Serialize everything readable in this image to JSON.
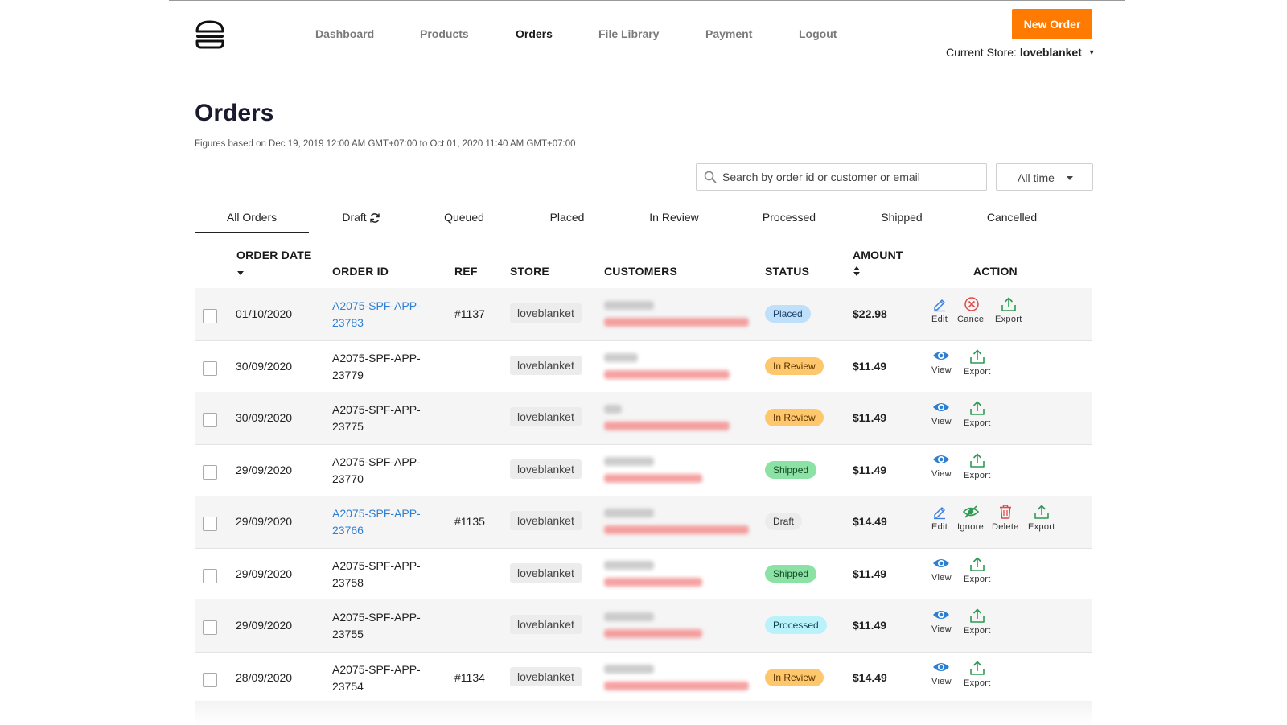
{
  "header": {
    "nav": [
      {
        "label": "Dashboard",
        "active": false
      },
      {
        "label": "Products",
        "active": false
      },
      {
        "label": "Orders",
        "active": true
      },
      {
        "label": "File Library",
        "active": false
      },
      {
        "label": "Payment",
        "active": false
      },
      {
        "label": "Logout",
        "active": false
      }
    ],
    "new_order_label": "New Order",
    "current_store_label": "Current Store:",
    "current_store_value": "loveblanket",
    "accent_color": "#ff7a00"
  },
  "page": {
    "title": "Orders",
    "figures_note": "Figures based on Dec 19, 2019 12:00 AM GMT+07:00 to Oct 01, 2020 11:40 AM GMT+07:00"
  },
  "search": {
    "placeholder": "Search by order id or customer or email",
    "value": ""
  },
  "time_filter": {
    "selected": "All time"
  },
  "tabs": [
    {
      "label": "All Orders",
      "active": true
    },
    {
      "label": "Draft",
      "active": false,
      "icon": "sync-icon"
    },
    {
      "label": "Queued",
      "active": false
    },
    {
      "label": "Placed",
      "active": false
    },
    {
      "label": "In Review",
      "active": false
    },
    {
      "label": "Processed",
      "active": false
    },
    {
      "label": "Shipped",
      "active": false
    },
    {
      "label": "Cancelled",
      "active": false
    }
  ],
  "table": {
    "columns": {
      "order_date": "ORDER DATE",
      "order_id": "ORDER ID",
      "ref": "REF",
      "store": "STORE",
      "customers": "CUSTOMERS",
      "status": "STATUS",
      "amount": "AMOUNT",
      "action": "ACTION"
    },
    "rows": [
      {
        "date": "01/10/2020",
        "id_line1": "A2075-SPF-APP-",
        "id_line2": "23783",
        "id_link": true,
        "ref": "#1137",
        "store": "loveblanket",
        "status": "Placed",
        "amount": "$22.98",
        "actions": [
          "Edit",
          "Cancel",
          "Export"
        ]
      },
      {
        "date": "30/09/2020",
        "id_line1": "A2075-SPF-APP-",
        "id_line2": "23779",
        "id_link": false,
        "ref": "",
        "store": "loveblanket",
        "status": "In Review",
        "amount": "$11.49",
        "actions": [
          "View",
          "Export"
        ]
      },
      {
        "date": "30/09/2020",
        "id_line1": "A2075-SPF-APP-",
        "id_line2": "23775",
        "id_link": false,
        "ref": "",
        "store": "loveblanket",
        "status": "In Review",
        "amount": "$11.49",
        "actions": [
          "View",
          "Export"
        ]
      },
      {
        "date": "29/09/2020",
        "id_line1": "A2075-SPF-APP-",
        "id_line2": "23770",
        "id_link": false,
        "ref": "",
        "store": "loveblanket",
        "status": "Shipped",
        "amount": "$11.49",
        "actions": [
          "View",
          "Export"
        ]
      },
      {
        "date": "29/09/2020",
        "id_line1": "A2075-SPF-APP-",
        "id_line2": "23766",
        "id_link": true,
        "ref": "#1135",
        "store": "loveblanket",
        "status": "Draft",
        "amount": "$14.49",
        "actions": [
          "Edit",
          "Ignore",
          "Delete",
          "Export"
        ]
      },
      {
        "date": "29/09/2020",
        "id_line1": "A2075-SPF-APP-",
        "id_line2": "23758",
        "id_link": false,
        "ref": "",
        "store": "loveblanket",
        "status": "Shipped",
        "amount": "$11.49",
        "actions": [
          "View",
          "Export"
        ]
      },
      {
        "date": "29/09/2020",
        "id_line1": "A2075-SPF-APP-",
        "id_line2": "23755",
        "id_link": false,
        "ref": "",
        "store": "loveblanket",
        "status": "Processed",
        "amount": "$11.49",
        "actions": [
          "View",
          "Export"
        ]
      },
      {
        "date": "28/09/2020",
        "id_line1": "A2075-SPF-APP-",
        "id_line2": "23754",
        "id_link": false,
        "ref": "#1134",
        "store": "loveblanket",
        "status": "In Review",
        "amount": "$14.49",
        "actions": [
          "View",
          "Export"
        ]
      }
    ]
  },
  "status_colors": {
    "Placed": {
      "bg": "#bfe0fb",
      "fg": "#1d3f66"
    },
    "In Review": {
      "bg": "#ffc76b",
      "fg": "#5a3300"
    },
    "Shipped": {
      "bg": "#8be2a4",
      "fg": "#134a24"
    },
    "Draft": {
      "bg": "#ececec",
      "fg": "#333333"
    },
    "Processed": {
      "bg": "#b9f2fb",
      "fg": "#0f4450"
    }
  },
  "action_icons": {
    "Edit": "edit-icon",
    "Cancel": "cancel-icon",
    "Export": "export-icon",
    "View": "view-icon",
    "Ignore": "ignore-icon",
    "Delete": "delete-icon"
  }
}
